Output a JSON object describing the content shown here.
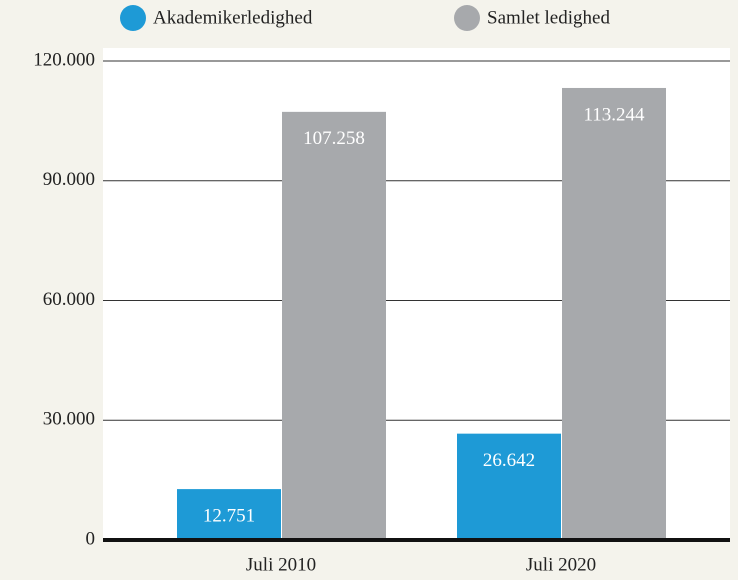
{
  "chart_data": {
    "type": "bar",
    "categories": [
      "Juli 2010",
      "Juli 2020"
    ],
    "series": [
      {
        "name": "Akademikerledighed",
        "color": "#1e9ad6",
        "values": [
          12751,
          26642
        ],
        "value_labels": [
          "12.751",
          "26.642"
        ]
      },
      {
        "name": "Samlet ledighed",
        "color": "#a7a9ac",
        "values": [
          107258,
          113244
        ],
        "value_labels": [
          "107.258",
          "113.244"
        ]
      }
    ],
    "ylim": [
      0,
      120000
    ],
    "yticks": [
      0,
      {
        "value": 30000,
        "label": "30.000"
      },
      {
        "value": 60000,
        "label": "60.000"
      },
      {
        "value": 90000,
        "label": "90.000"
      },
      {
        "value": 120000,
        "label": "120.000"
      }
    ],
    "grid": true
  }
}
